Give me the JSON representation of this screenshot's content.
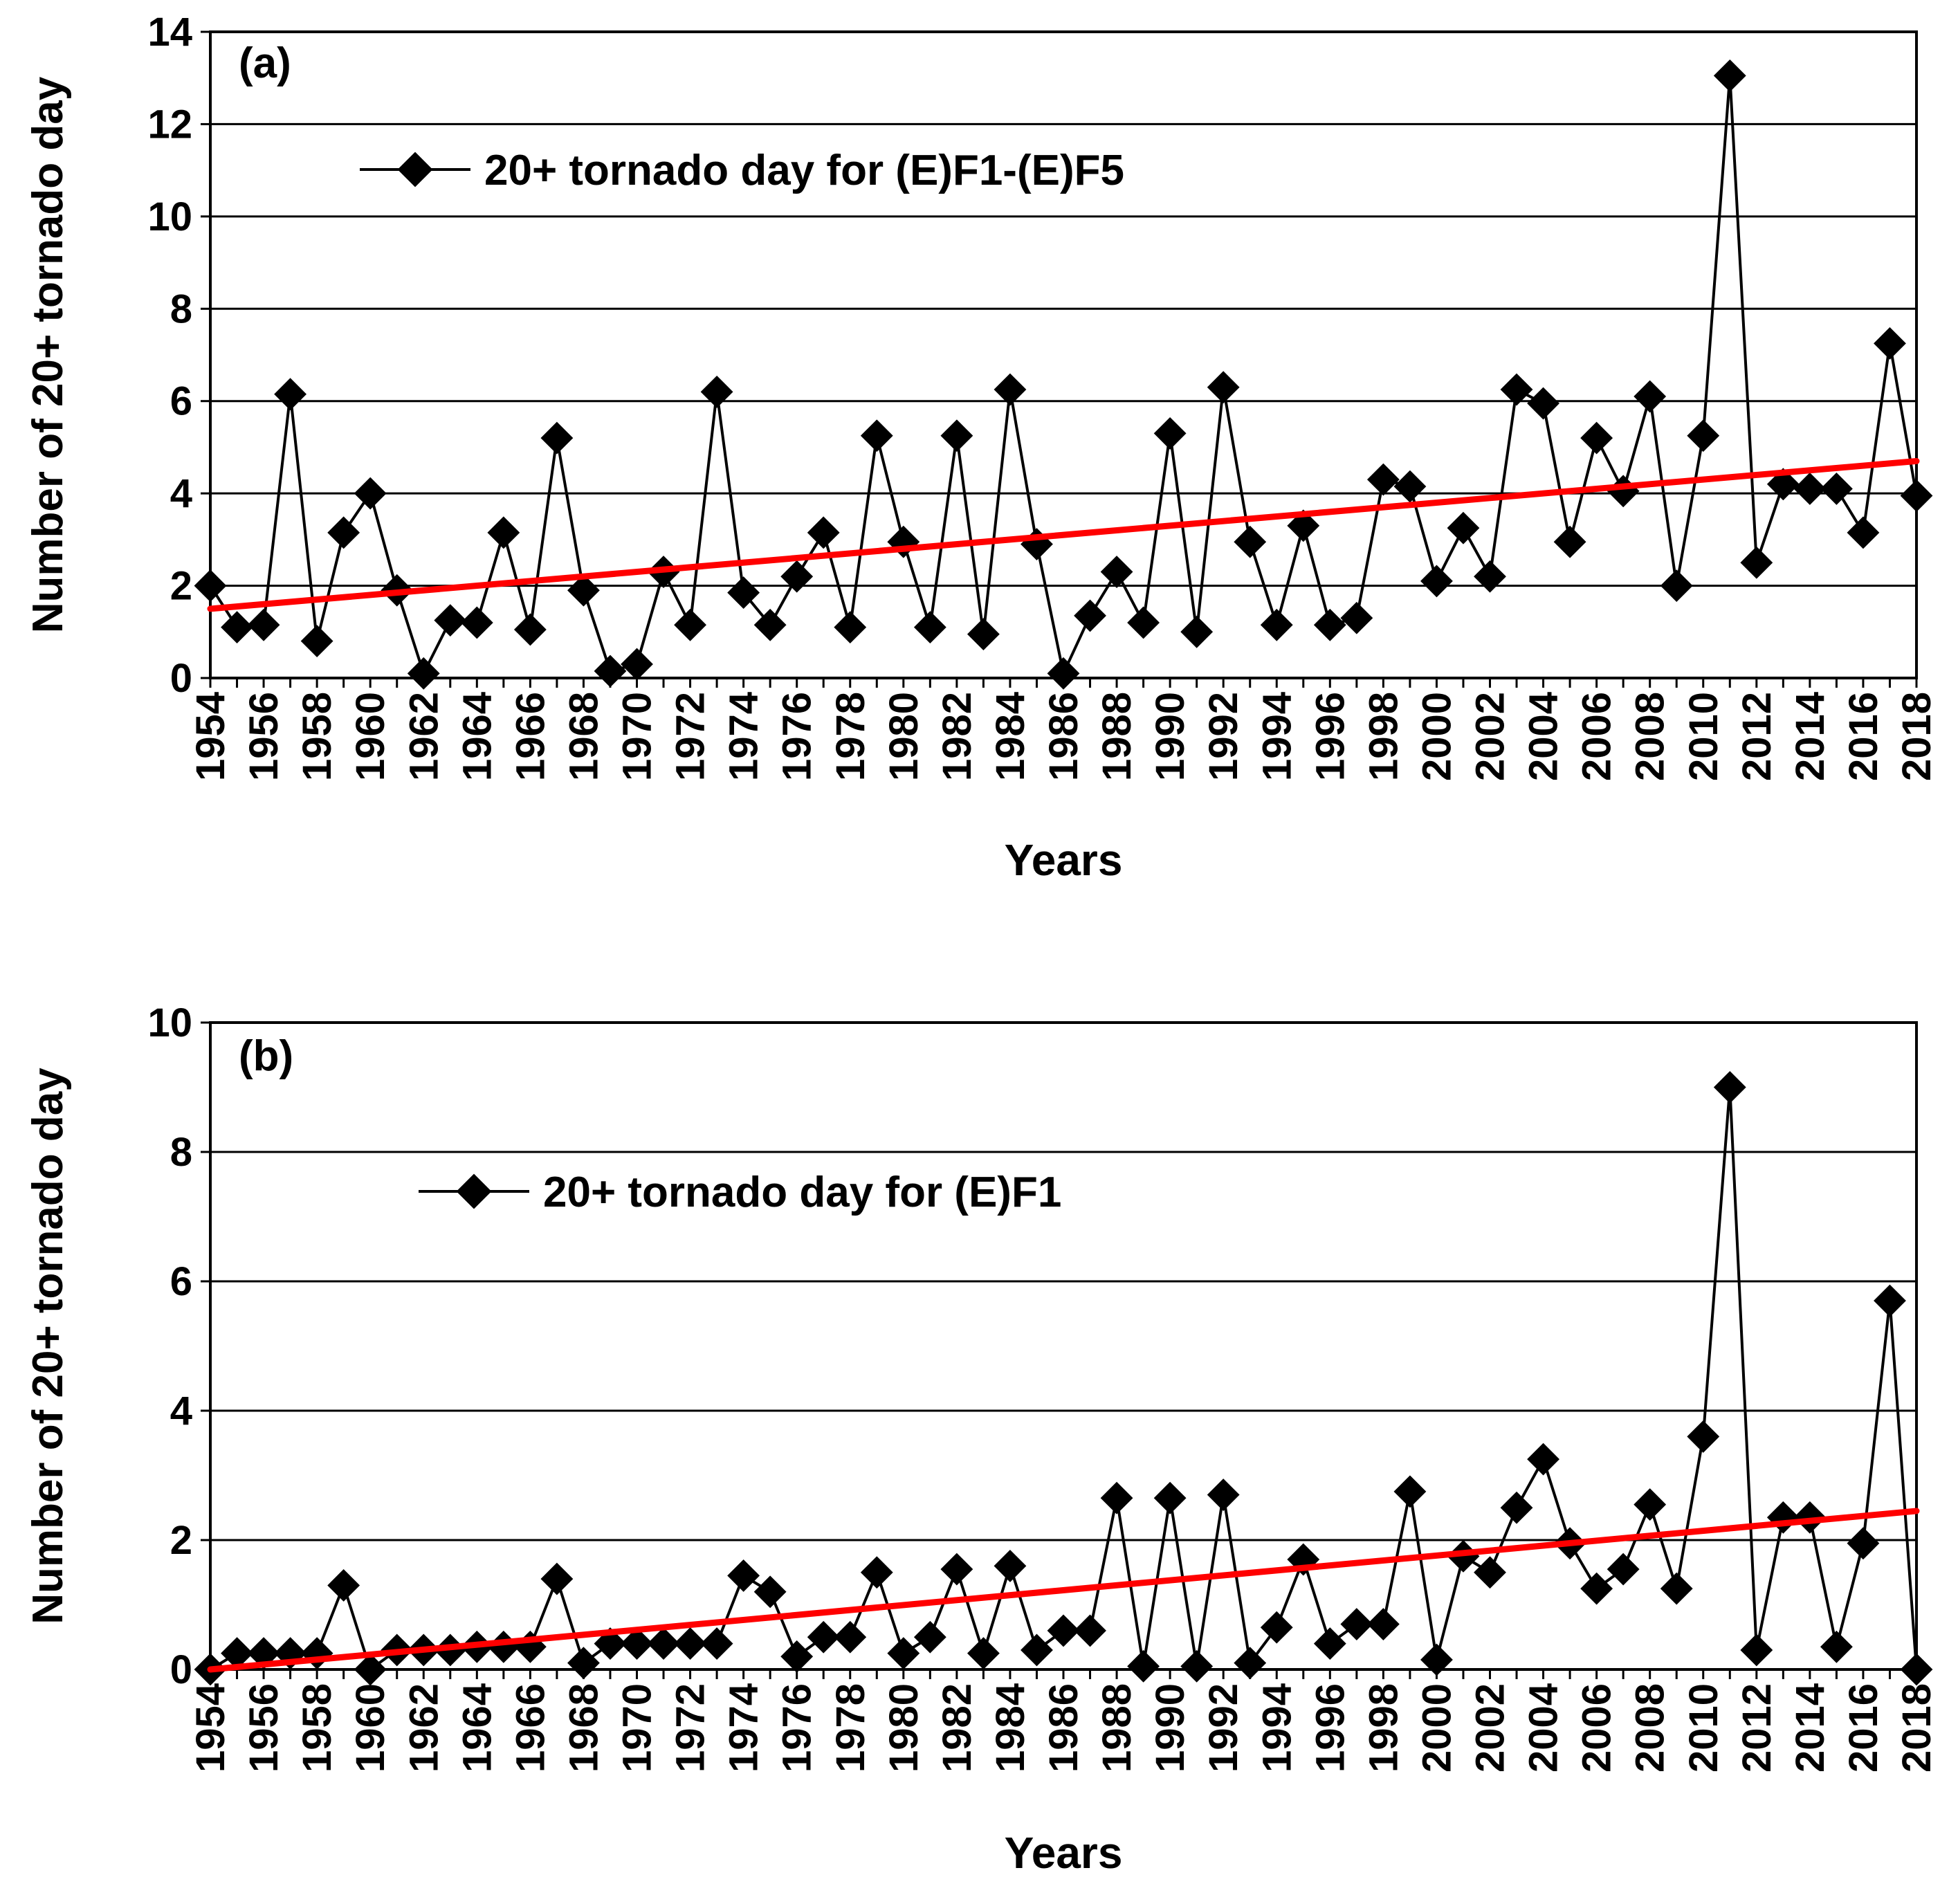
{
  "chart_data": [
    {
      "type": "line",
      "panel_label": "(a)",
      "title": "",
      "xlabel": "Years",
      "ylabel": "Number of 20+ tornado day",
      "ylim": [
        0,
        14
      ],
      "yticks": [
        "0",
        "2",
        "4",
        "6",
        "8",
        "10",
        "12",
        "14"
      ],
      "xlim": [
        1954,
        2018
      ],
      "xticks": [
        "1954",
        "1956",
        "1958",
        "1960",
        "1962",
        "1964",
        "1966",
        "1968",
        "1970",
        "1972",
        "1974",
        "1976",
        "1978",
        "1980",
        "1982",
        "1984",
        "1986",
        "1988",
        "1990",
        "1992",
        "1994",
        "1996",
        "1998",
        "2000",
        "2002",
        "2004",
        "2006",
        "2008",
        "2010",
        "2012",
        "2014",
        "2016",
        "2018"
      ],
      "grid": true,
      "legend": {
        "position": "top-left",
        "entries": [
          "20+ tornado day for (E)F1-(E)F5"
        ]
      },
      "x": [
        1954,
        1955,
        1956,
        1957,
        1958,
        1959,
        1960,
        1961,
        1962,
        1963,
        1964,
        1965,
        1966,
        1967,
        1968,
        1969,
        1970,
        1971,
        1972,
        1973,
        1974,
        1975,
        1976,
        1977,
        1978,
        1979,
        1980,
        1981,
        1982,
        1983,
        1984,
        1985,
        1986,
        1987,
        1988,
        1989,
        1990,
        1991,
        1992,
        1993,
        1994,
        1995,
        1996,
        1997,
        1998,
        1999,
        2000,
        2001,
        2002,
        2003,
        2004,
        2005,
        2006,
        2007,
        2008,
        2009,
        2010,
        2011,
        2012,
        2013,
        2014,
        2015,
        2016,
        2017,
        2018
      ],
      "series": [
        {
          "name": "20+ tornado day for (E)F1-(E)F5",
          "marker": "diamond",
          "color": "#000000",
          "values": [
            2.0,
            1.1,
            1.15,
            6.15,
            0.8,
            3.15,
            4.0,
            1.9,
            0.1,
            1.25,
            1.2,
            3.15,
            1.05,
            5.2,
            1.9,
            0.15,
            0.3,
            2.3,
            1.15,
            6.2,
            1.85,
            1.15,
            2.2,
            3.15,
            1.1,
            5.25,
            2.95,
            1.1,
            5.25,
            0.95,
            6.25,
            2.9,
            0.1,
            1.35,
            2.3,
            1.2,
            5.3,
            1.0,
            6.3,
            2.95,
            1.15,
            3.3,
            1.15,
            1.3,
            4.3,
            4.15,
            2.1,
            3.25,
            2.2,
            6.25,
            5.95,
            2.95,
            5.2,
            4.05,
            6.1,
            2.0,
            5.25,
            13.05,
            2.5,
            4.2,
            4.1,
            4.1,
            3.15,
            7.25,
            3.95
          ]
        },
        {
          "name": "trend",
          "color": "#ff0000",
          "line_only": true,
          "x": [
            1954,
            2018
          ],
          "values": [
            1.5,
            4.7
          ]
        }
      ]
    },
    {
      "type": "line",
      "panel_label": "(b)",
      "title": "",
      "xlabel": "Years",
      "ylabel": "Number of 20+ tornado day",
      "ylim": [
        0,
        10
      ],
      "yticks": [
        "0",
        "2",
        "4",
        "6",
        "8",
        "10"
      ],
      "xlim": [
        1954,
        2018
      ],
      "xticks": [
        "1954",
        "1956",
        "1958",
        "1960",
        "1962",
        "1964",
        "1966",
        "1968",
        "1970",
        "1972",
        "1974",
        "1976",
        "1978",
        "1980",
        "1982",
        "1984",
        "1986",
        "1988",
        "1990",
        "1992",
        "1994",
        "1996",
        "1998",
        "2000",
        "2002",
        "2004",
        "2006",
        "2008",
        "2010",
        "2012",
        "2014",
        "2016",
        "2018"
      ],
      "grid": true,
      "legend": {
        "position": "top-left",
        "entries": [
          "20+ tornado day for (E)F1"
        ]
      },
      "x": [
        1954,
        1955,
        1956,
        1957,
        1958,
        1959,
        1960,
        1961,
        1962,
        1963,
        1964,
        1965,
        1966,
        1967,
        1968,
        1969,
        1970,
        1971,
        1972,
        1973,
        1974,
        1975,
        1976,
        1977,
        1978,
        1979,
        1980,
        1981,
        1982,
        1983,
        1984,
        1985,
        1986,
        1987,
        1988,
        1989,
        1990,
        1991,
        1992,
        1993,
        1994,
        1995,
        1996,
        1997,
        1998,
        1999,
        2000,
        2001,
        2002,
        2003,
        2004,
        2005,
        2006,
        2007,
        2008,
        2009,
        2010,
        2011,
        2012,
        2013,
        2014,
        2015,
        2016,
        2017,
        2018
      ],
      "series": [
        {
          "name": "20+ tornado day for (E)F1",
          "marker": "diamond",
          "color": "#000000",
          "values": [
            0.0,
            0.25,
            0.25,
            0.25,
            0.25,
            1.3,
            0.0,
            0.3,
            0.3,
            0.3,
            0.35,
            0.35,
            0.35,
            1.4,
            0.1,
            0.4,
            0.4,
            0.4,
            0.4,
            0.4,
            1.45,
            1.2,
            0.2,
            0.5,
            0.5,
            1.5,
            0.25,
            0.5,
            1.55,
            0.25,
            1.6,
            0.3,
            0.6,
            0.6,
            2.65,
            0.05,
            2.65,
            0.05,
            2.7,
            0.1,
            0.65,
            1.7,
            0.4,
            0.7,
            0.7,
            2.75,
            0.15,
            1.75,
            1.5,
            2.5,
            3.25,
            1.95,
            1.25,
            1.55,
            2.55,
            1.25,
            3.6,
            9.0,
            0.3,
            2.35,
            2.35,
            0.35,
            1.95,
            5.7,
            0.0
          ]
        },
        {
          "name": "trend",
          "color": "#ff0000",
          "line_only": true,
          "x": [
            1954,
            2018
          ],
          "values": [
            0.0,
            2.45
          ]
        }
      ]
    }
  ]
}
